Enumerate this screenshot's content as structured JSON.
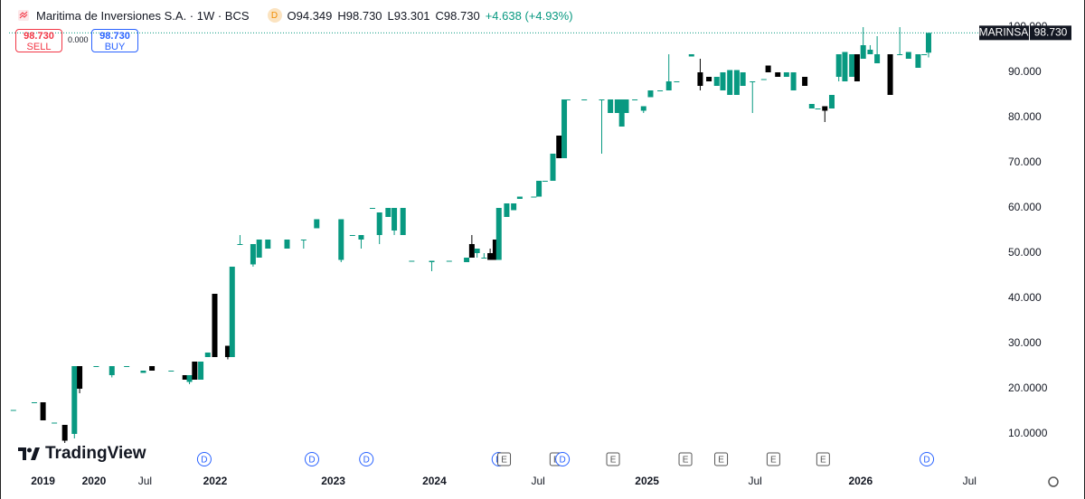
{
  "chart_data": {
    "type": "candlestick",
    "title": "Maritima de Inversiones S.A. · 1W · BCS",
    "interval_badge": "D",
    "header_values": [
      "O94.349",
      "H98.730",
      "L93.301",
      "C98.730",
      "+4.638 (+4.93%)"
    ],
    "sell_price": "98.730",
    "sell_label": "SELL",
    "spread": "0.000",
    "buy_price": "98.730",
    "buy_label": "BUY",
    "symbol": "MARINSA",
    "last_price": {
      "value": 98.73,
      "label": "98.730"
    },
    "up_color": "#089981",
    "down_color": "#000000",
    "x": [
      0.5,
      2.9,
      3.9,
      5.2,
      6.4,
      7.5,
      8.1,
      10,
      11.8,
      13.5,
      15.4,
      16.4,
      18.6,
      20.2,
      20.7,
      21.3,
      22,
      22.8,
      23.6,
      25.1,
      25.6,
      26.5,
      28,
      28.7,
      29.7,
      31.9,
      33.8,
      35.3,
      38.1,
      39.4,
      40.4,
      41.7,
      42.5,
      43.5,
      44.2,
      45.2,
      46.2,
      48.5,
      50.5,
      52.5,
      53.1,
      53.7,
      54.5,
      55.2,
      55.8,
      56.2,
      57.1,
      57.9,
      58.6,
      60.2,
      60.8,
      61.5,
      62.4,
      63.1,
      63.7,
      64.1,
      66,
      68,
      69,
      69.8,
      70.3,
      70.8,
      71.8,
      72.8,
      73.6,
      74.7,
      75.7,
      76.6,
      78.3,
      79.3,
      80.3,
      81.2,
      81.9,
      82.7,
      83.5,
      84.2,
      85.3,
      86.6,
      87.1,
      88.2,
      89.2,
      90,
      91.3,
      92.1,
      92.8,
      93.6,
      94.4,
      95.2,
      95.9,
      96.7,
      97.3,
      98,
      98.8,
      99.6,
      101.1,
      102.2,
      103.2,
      104.3,
      105,
      105.5
    ],
    "open": [
      15.3,
      17,
      17,
      12.5,
      12,
      10,
      25,
      25,
      23,
      25,
      23.5,
      25,
      24,
      23,
      21.5,
      26,
      22,
      27,
      41,
      29.5,
      27,
      52,
      47.5,
      49,
      51,
      51,
      53,
      55.5,
      48.5,
      54,
      53,
      60,
      54,
      58,
      55,
      54,
      48.3,
      48,
      48.3,
      48,
      52,
      50,
      49,
      50,
      53,
      48.5,
      58,
      59.5,
      62,
      62.5,
      62.5,
      66,
      66,
      76,
      71,
      84,
      84,
      84,
      81,
      81,
      78,
      81,
      84,
      81.5,
      84.5,
      86,
      86,
      88,
      93.5,
      90,
      89,
      87,
      86,
      85,
      85,
      87,
      88,
      88.5,
      91.5,
      90,
      89,
      86,
      89,
      82,
      82,
      82.5,
      82,
      89,
      88,
      89,
      94,
      93,
      94,
      92,
      94,
      94,
      93,
      91,
      94,
      94.349
    ],
    "high": [
      15.3,
      17,
      17,
      12.5,
      12,
      25,
      25,
      25,
      25,
      25,
      24,
      25,
      24,
      23,
      23,
      26,
      26,
      28,
      41,
      29.5,
      47,
      54,
      52,
      53,
      53,
      53,
      53,
      57.5,
      57.5,
      54,
      54,
      60,
      59,
      60,
      60,
      60,
      48.3,
      48.3,
      48.3,
      49,
      54,
      51,
      50,
      51,
      53,
      60,
      61,
      61,
      62.5,
      62.5,
      66,
      66,
      72,
      76,
      84,
      84,
      84,
      84,
      84,
      84,
      84,
      84,
      84,
      82.5,
      86,
      86,
      94,
      88,
      94,
      93,
      89,
      89,
      90,
      90.5,
      90.5,
      90,
      88,
      88.5,
      91.5,
      90,
      90,
      90,
      89,
      83,
      82,
      82.5,
      85,
      94,
      94.5,
      94,
      94,
      100,
      96,
      98,
      94,
      100,
      94.5,
      94,
      94,
      98.73
    ],
    "low": [
      15.3,
      17,
      13,
      12.5,
      8,
      9,
      19,
      25,
      22.5,
      25,
      23.5,
      24,
      24,
      22,
      21,
      22,
      22,
      27,
      27,
      26.5,
      27,
      52,
      47,
      49,
      51,
      51,
      51,
      55.5,
      48,
      54,
      51,
      60,
      52,
      58,
      54,
      54,
      48.3,
      46,
      48.3,
      48,
      49,
      49,
      49,
      48.5,
      48.5,
      48.5,
      58,
      59.5,
      62,
      62.5,
      62.5,
      66,
      66,
      71,
      71,
      84,
      84,
      72,
      81,
      81,
      78,
      81,
      84,
      81,
      84.5,
      86,
      86,
      88,
      93.5,
      86,
      88,
      87,
      86,
      85,
      85,
      87,
      81,
      88.5,
      90,
      89,
      89,
      86,
      87,
      82,
      82,
      79,
      82,
      88,
      88,
      89,
      88,
      93,
      94,
      92,
      85,
      94,
      93,
      91,
      94,
      93.301
    ],
    "close": [
      15.3,
      17,
      13,
      12.5,
      8.5,
      25,
      20,
      25,
      25,
      25,
      24,
      24,
      24,
      22,
      23,
      22,
      26,
      28,
      27,
      27,
      47,
      52,
      52,
      53,
      53,
      53,
      53,
      57.5,
      57.5,
      54,
      54,
      60,
      59,
      60,
      60,
      60,
      48.3,
      48.3,
      48.3,
      49,
      49,
      51,
      49,
      48.5,
      48.5,
      60,
      61,
      61,
      62.5,
      62.5,
      66,
      66,
      72,
      71,
      84,
      84,
      84,
      84,
      84,
      84,
      84,
      84,
      84,
      82.5,
      86,
      86,
      88,
      88,
      94,
      87,
      88,
      89,
      90,
      90.5,
      90.5,
      90,
      88,
      88.5,
      90,
      89,
      90,
      90,
      87,
      83,
      82,
      81.5,
      85,
      94,
      94.5,
      94,
      88,
      96,
      95,
      94,
      85,
      94,
      94.5,
      94,
      94,
      98.73
    ],
    "xlim": [
      0,
      111
    ],
    "xticks": [
      {
        "value": 3.9,
        "label": "2019"
      },
      {
        "value": 9.75,
        "label": "2020"
      },
      {
        "value": 15.6,
        "label": "Jul"
      },
      {
        "value": 23.65,
        "label": "2022"
      },
      {
        "value": 37.2,
        "label": "2023"
      },
      {
        "value": 48.8,
        "label": "2024"
      },
      {
        "value": 60.7,
        "label": "Jul"
      },
      {
        "value": 73.2,
        "label": "2025"
      },
      {
        "value": 85.6,
        "label": "Jul"
      },
      {
        "value": 97.7,
        "label": "2026"
      },
      {
        "value": 110.2,
        "label": "Jul"
      }
    ],
    "ylim": [
      7,
      100.4
    ],
    "yticks": [
      {
        "value": 10,
        "label": "10.0000"
      },
      {
        "value": 20,
        "label": "20.0000"
      },
      {
        "value": 30,
        "label": "30.000"
      },
      {
        "value": 40,
        "label": "40.000"
      },
      {
        "value": 50,
        "label": "50.000"
      },
      {
        "value": 60,
        "label": "60.000"
      },
      {
        "value": 70,
        "label": "70.000"
      },
      {
        "value": 80,
        "label": "80.000"
      },
      {
        "value": 90,
        "label": "90.000"
      },
      {
        "value": 100,
        "label": "100.000"
      }
    ],
    "events": [
      {
        "label": "D",
        "x": 22.4
      },
      {
        "label": "D",
        "x": 34.75
      },
      {
        "label": "D",
        "x": 41
      },
      {
        "label": "D",
        "x": 56.2
      },
      {
        "label": "E",
        "x": 56.8
      },
      {
        "label": "E",
        "x": 62.8
      },
      {
        "label": "D",
        "x": 63.5
      },
      {
        "label": "E",
        "x": 69.3
      },
      {
        "label": "E",
        "x": 77.6
      },
      {
        "label": "E",
        "x": 81.7
      },
      {
        "label": "E",
        "x": 87.7
      },
      {
        "label": "E",
        "x": 93.4
      },
      {
        "label": "D",
        "x": 105.3
      }
    ],
    "logo": "TradingView"
  }
}
